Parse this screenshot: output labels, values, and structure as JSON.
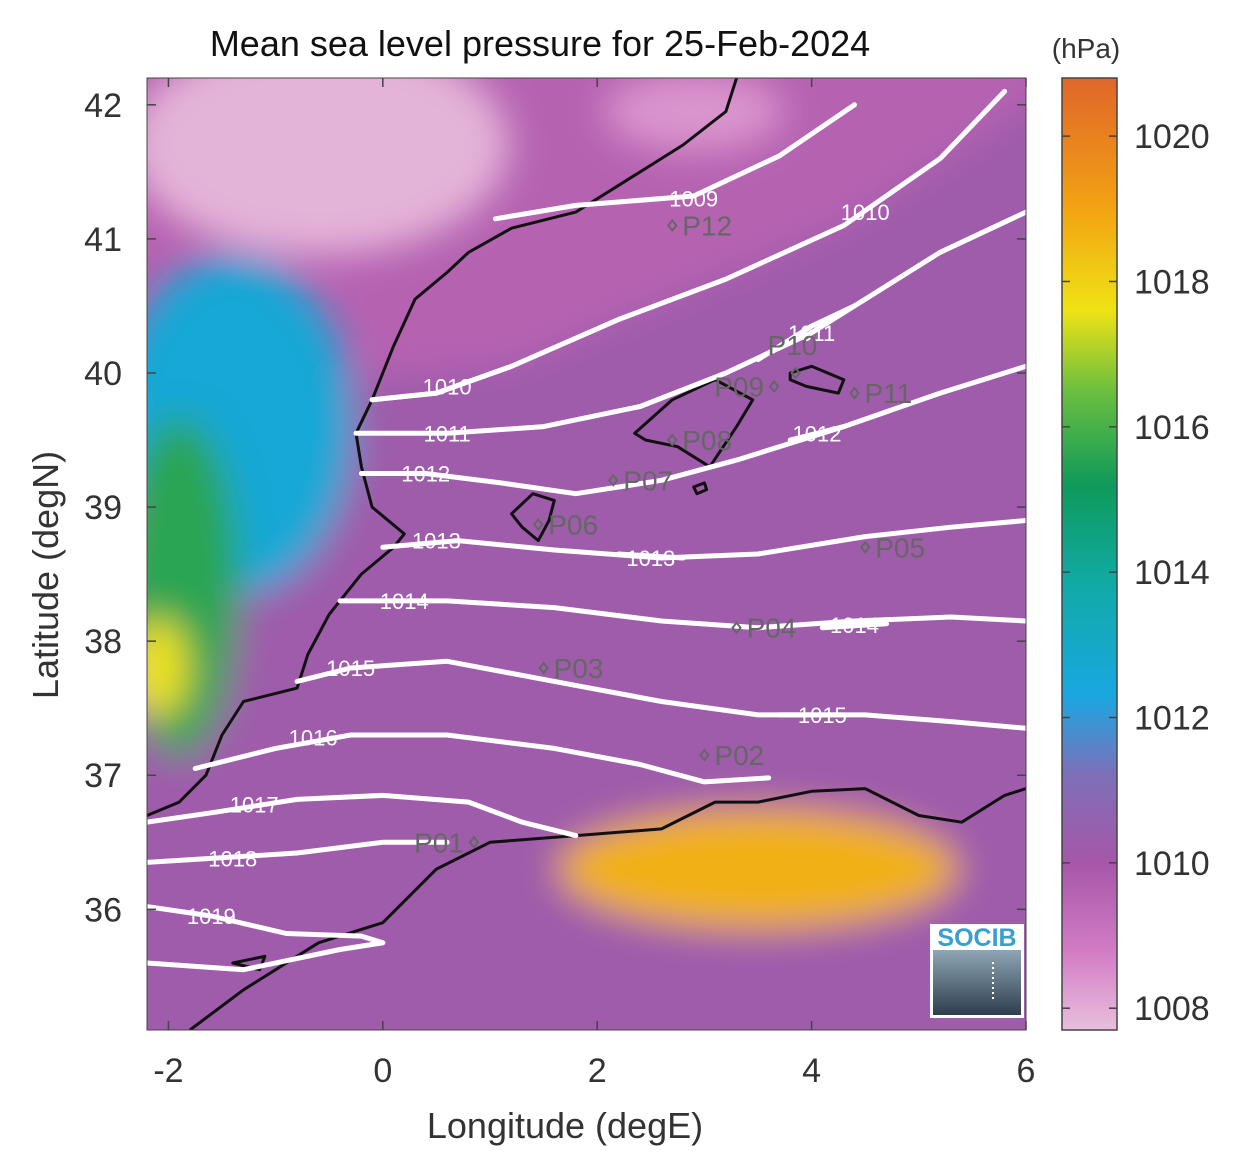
{
  "title": "Mean sea level pressure for 25-Feb-2024",
  "colors": {
    "contour": "#ffffff",
    "coast": "#111111",
    "station": "#666666",
    "frame": "#444444",
    "socib_text": "#3a9fd0"
  },
  "logo": {
    "text": "SOCIB"
  },
  "chart_data": {
    "type": "heatmap",
    "title": "Mean sea level pressure for 25-Feb-2024",
    "xlabel": "Longitude (degE)",
    "ylabel": "Latitude (degN)",
    "xlim": [
      -2.2,
      6.0
    ],
    "ylim": [
      35.1,
      42.2
    ],
    "xticks": [
      -2,
      0,
      2,
      4,
      6
    ],
    "yticks": [
      36,
      37,
      38,
      39,
      40,
      41,
      42
    ],
    "colorbar": {
      "unit": "(hPa)",
      "range": [
        1007.7,
        1020.8
      ],
      "ticks": [
        1008,
        1010,
        1012,
        1014,
        1016,
        1018,
        1020
      ],
      "colormap": [
        {
          "value": 1007.7,
          "color": "#e8bfdc"
        },
        {
          "value": 1008.8,
          "color": "#d27bc4"
        },
        {
          "value": 1010.0,
          "color": "#a657a8"
        },
        {
          "value": 1011.2,
          "color": "#7e6fb8"
        },
        {
          "value": 1012.3,
          "color": "#1aa7e2"
        },
        {
          "value": 1013.8,
          "color": "#10aba7"
        },
        {
          "value": 1015.2,
          "color": "#0f9a5a"
        },
        {
          "value": 1016.5,
          "color": "#6cbf3f"
        },
        {
          "value": 1017.6,
          "color": "#efe314"
        },
        {
          "value": 1019.0,
          "color": "#f2a313"
        },
        {
          "value": 1020.8,
          "color": "#e0662a"
        }
      ]
    },
    "contours": [
      {
        "level": 1009,
        "label": "1009",
        "points": [
          [
            1.05,
            41.15
          ],
          [
            1.8,
            41.25
          ],
          [
            2.9,
            41.32
          ],
          [
            3.7,
            41.62
          ],
          [
            4.4,
            42.0
          ]
        ],
        "label_at": [
          2.9,
          41.3
        ]
      },
      {
        "level": 1010,
        "label": "1010",
        "points": [
          [
            -0.1,
            39.8
          ],
          [
            0.5,
            39.85
          ],
          [
            1.2,
            40.05
          ],
          [
            2.2,
            40.4
          ],
          [
            3.2,
            40.7
          ],
          [
            4.3,
            41.1
          ],
          [
            5.2,
            41.6
          ],
          [
            5.8,
            42.1
          ]
        ],
        "label_at": [
          4.5,
          41.2
        ]
      },
      {
        "level": 1010,
        "label": "1010",
        "points": [
          [
            -0.1,
            39.8
          ],
          [
            0.5,
            39.85
          ],
          [
            1.2,
            40.05
          ]
        ],
        "label_at": [
          0.6,
          39.9
        ]
      },
      {
        "level": 1011,
        "label": "1011",
        "points": [
          [
            -0.25,
            39.55
          ],
          [
            0.6,
            39.55
          ],
          [
            1.5,
            39.6
          ],
          [
            2.4,
            39.75
          ],
          [
            3.2,
            40.0
          ],
          [
            4.0,
            40.3
          ],
          [
            5.2,
            40.9
          ],
          [
            6.0,
            41.2
          ]
        ],
        "label_at": [
          0.6,
          39.55
        ]
      },
      {
        "level": 1011,
        "label": "1011",
        "points": [
          [
            3.5,
            40.1
          ],
          [
            4.0,
            40.35
          ],
          [
            4.4,
            40.5
          ]
        ],
        "label_at": [
          4.0,
          40.3
        ]
      },
      {
        "level": 1012,
        "label": "1012",
        "points": [
          [
            -0.2,
            39.25
          ],
          [
            0.4,
            39.25
          ],
          [
            1.1,
            39.18
          ],
          [
            1.8,
            39.1
          ],
          [
            2.6,
            39.2
          ],
          [
            3.3,
            39.35
          ],
          [
            4.3,
            39.6
          ],
          [
            5.2,
            39.85
          ],
          [
            6.0,
            40.05
          ]
        ],
        "label_at": [
          0.4,
          39.25
        ]
      },
      {
        "level": 1012,
        "label": "1012",
        "points": [
          [
            3.8,
            39.5
          ],
          [
            4.3,
            39.6
          ]
        ],
        "label_at": [
          4.05,
          39.55
        ]
      },
      {
        "level": 1013,
        "label": "1013",
        "points": [
          [
            0.0,
            38.7
          ],
          [
            0.7,
            38.75
          ],
          [
            1.6,
            38.68
          ],
          [
            2.6,
            38.62
          ],
          [
            3.5,
            38.65
          ],
          [
            4.5,
            38.78
          ],
          [
            5.3,
            38.85
          ],
          [
            6.0,
            38.9
          ]
        ],
        "label_at": [
          0.5,
          38.75
        ]
      },
      {
        "level": 1013,
        "label": "1013",
        "points": [
          [
            2.2,
            38.65
          ],
          [
            2.8,
            38.62
          ]
        ],
        "label_at": [
          2.5,
          38.62
        ]
      },
      {
        "level": 1014,
        "label": "1014",
        "points": [
          [
            -0.4,
            38.3
          ],
          [
            0.6,
            38.3
          ],
          [
            1.6,
            38.25
          ],
          [
            2.6,
            38.15
          ],
          [
            3.5,
            38.1
          ],
          [
            4.4,
            38.15
          ],
          [
            5.3,
            38.18
          ],
          [
            6.0,
            38.15
          ]
        ],
        "label_at": [
          0.2,
          38.3
        ]
      },
      {
        "level": 1014,
        "label": "1014",
        "points": [
          [
            4.1,
            38.1
          ],
          [
            4.7,
            38.13
          ]
        ],
        "label_at": [
          4.4,
          38.12
        ]
      },
      {
        "level": 1015,
        "label": "1015",
        "points": [
          [
            -0.8,
            37.7
          ],
          [
            -0.3,
            37.8
          ],
          [
            0.6,
            37.85
          ],
          [
            1.6,
            37.7
          ],
          [
            2.6,
            37.55
          ],
          [
            3.5,
            37.45
          ],
          [
            4.5,
            37.45
          ],
          [
            5.3,
            37.4
          ],
          [
            6.0,
            37.35
          ]
        ],
        "label_at": [
          -0.3,
          37.8
        ]
      },
      {
        "level": 1015,
        "label": "1015",
        "points": [
          [
            3.7,
            37.45
          ],
          [
            4.3,
            37.45
          ]
        ],
        "label_at": [
          4.1,
          37.45
        ]
      },
      {
        "level": 1016,
        "label": "1016",
        "points": [
          [
            -1.75,
            37.05
          ],
          [
            -1.0,
            37.2
          ],
          [
            -0.3,
            37.3
          ],
          [
            0.6,
            37.3
          ],
          [
            1.6,
            37.2
          ],
          [
            2.4,
            37.08
          ],
          [
            3.0,
            36.95
          ],
          [
            3.6,
            36.98
          ]
        ],
        "label_at": [
          -0.65,
          37.28
        ]
      },
      {
        "level": 1017,
        "label": "1017",
        "points": [
          [
            -2.2,
            36.65
          ],
          [
            -1.6,
            36.72
          ],
          [
            -0.8,
            36.82
          ],
          [
            0.0,
            36.85
          ],
          [
            0.8,
            36.8
          ],
          [
            1.3,
            36.65
          ],
          [
            1.8,
            36.55
          ]
        ],
        "label_at": [
          -1.2,
          36.78
        ]
      },
      {
        "level": 1018,
        "label": "1018",
        "points": [
          [
            -2.2,
            36.35
          ],
          [
            -1.6,
            36.38
          ],
          [
            -0.8,
            36.42
          ],
          [
            0.0,
            36.5
          ],
          [
            0.6,
            36.5
          ]
        ],
        "label_at": [
          -1.4,
          36.38
        ]
      },
      {
        "level": 1019,
        "label": "1019",
        "points": [
          [
            -2.2,
            36.02
          ],
          [
            -1.6,
            35.95
          ],
          [
            -0.9,
            35.82
          ],
          [
            -0.2,
            35.8
          ],
          [
            0.0,
            35.75
          ]
        ],
        "label_at": [
          -1.6,
          35.95
        ]
      },
      {
        "level": 1020,
        "label": "",
        "points": [
          [
            -2.2,
            35.6
          ],
          [
            -1.3,
            35.55
          ],
          [
            -0.4,
            35.7
          ],
          [
            0.0,
            35.75
          ]
        ],
        "label_at": null
      }
    ],
    "stations": [
      {
        "id": "P01",
        "label": "P01",
        "lon": 0.85,
        "lat": 36.5,
        "label_side": "left"
      },
      {
        "id": "P02",
        "label": "P02",
        "lon": 3.0,
        "lat": 37.15,
        "label_side": "right"
      },
      {
        "id": "P03",
        "label": "P03",
        "lon": 1.5,
        "lat": 37.8,
        "label_side": "right"
      },
      {
        "id": "P04",
        "label": "P04",
        "lon": 3.3,
        "lat": 38.1,
        "label_side": "right"
      },
      {
        "id": "P05",
        "label": "P05",
        "lon": 4.5,
        "lat": 38.7,
        "label_side": "right"
      },
      {
        "id": "P06",
        "label": "P06",
        "lon": 1.45,
        "lat": 38.87,
        "label_side": "right"
      },
      {
        "id": "P07",
        "label": "P07",
        "lon": 2.15,
        "lat": 39.2,
        "label_side": "right"
      },
      {
        "id": "P08",
        "label": "P08",
        "lon": 2.7,
        "lat": 39.5,
        "label_side": "right"
      },
      {
        "id": "P09",
        "label": "P09",
        "lon": 3.65,
        "lat": 39.9,
        "label_side": "left"
      },
      {
        "id": "P10",
        "label": "P10",
        "lon": 3.85,
        "lat": 40.0,
        "label_side": "above-left"
      },
      {
        "id": "P11",
        "label": "P11",
        "lon": 4.4,
        "lat": 39.85,
        "label_side": "right"
      },
      {
        "id": "P12",
        "label": "P12",
        "lon": 2.7,
        "lat": 41.1,
        "label_side": "right"
      }
    ],
    "coastlines": [
      {
        "name": "iberian-coast",
        "points": [
          [
            -2.2,
            36.7
          ],
          [
            -1.9,
            36.8
          ],
          [
            -1.65,
            37.0
          ],
          [
            -1.5,
            37.3
          ],
          [
            -1.3,
            37.55
          ],
          [
            -0.8,
            37.65
          ],
          [
            -0.7,
            37.9
          ],
          [
            -0.5,
            38.2
          ],
          [
            -0.2,
            38.5
          ],
          [
            0.1,
            38.7
          ],
          [
            0.2,
            38.8
          ],
          [
            -0.1,
            39.0
          ],
          [
            -0.2,
            39.3
          ],
          [
            -0.25,
            39.55
          ],
          [
            -0.1,
            39.8
          ],
          [
            0.1,
            40.2
          ],
          [
            0.3,
            40.55
          ],
          [
            0.6,
            40.75
          ],
          [
            0.8,
            40.9
          ],
          [
            1.2,
            41.08
          ],
          [
            1.8,
            41.2
          ],
          [
            2.2,
            41.4
          ],
          [
            2.8,
            41.7
          ],
          [
            3.2,
            41.95
          ],
          [
            3.3,
            42.2
          ]
        ]
      },
      {
        "name": "african-coast",
        "points": [
          [
            -1.8,
            35.1
          ],
          [
            -1.3,
            35.4
          ],
          [
            -0.6,
            35.75
          ],
          [
            0.0,
            35.9
          ],
          [
            0.5,
            36.3
          ],
          [
            1.0,
            36.5
          ],
          [
            1.8,
            36.55
          ],
          [
            2.6,
            36.6
          ],
          [
            3.1,
            36.8
          ],
          [
            3.5,
            36.8
          ],
          [
            4.0,
            36.88
          ],
          [
            4.5,
            36.9
          ],
          [
            5.0,
            36.7
          ],
          [
            5.4,
            36.65
          ],
          [
            5.8,
            36.85
          ],
          [
            6.0,
            36.9
          ]
        ]
      },
      {
        "name": "mallorca",
        "closed": true,
        "points": [
          [
            2.35,
            39.55
          ],
          [
            2.7,
            39.8
          ],
          [
            3.1,
            39.95
          ],
          [
            3.45,
            39.8
          ],
          [
            3.3,
            39.6
          ],
          [
            3.05,
            39.3
          ],
          [
            2.75,
            39.45
          ],
          [
            2.45,
            39.5
          ]
        ]
      },
      {
        "name": "menorca",
        "closed": true,
        "points": [
          [
            3.8,
            40.0
          ],
          [
            4.0,
            40.05
          ],
          [
            4.3,
            39.95
          ],
          [
            4.25,
            39.85
          ],
          [
            3.95,
            39.9
          ],
          [
            3.8,
            39.95
          ]
        ]
      },
      {
        "name": "ibiza",
        "closed": true,
        "points": [
          [
            1.2,
            38.95
          ],
          [
            1.4,
            39.1
          ],
          [
            1.6,
            39.05
          ],
          [
            1.55,
            38.9
          ],
          [
            1.45,
            38.75
          ],
          [
            1.3,
            38.85
          ]
        ]
      },
      {
        "name": "cabrera",
        "closed": true,
        "points": [
          [
            2.9,
            39.15
          ],
          [
            3.0,
            39.18
          ],
          [
            3.02,
            39.13
          ],
          [
            2.93,
            39.1
          ]
        ]
      },
      {
        "name": "alboran-islet",
        "closed": true,
        "points": [
          [
            -1.4,
            35.6
          ],
          [
            -1.1,
            35.65
          ],
          [
            -1.15,
            35.55
          ]
        ]
      }
    ]
  }
}
